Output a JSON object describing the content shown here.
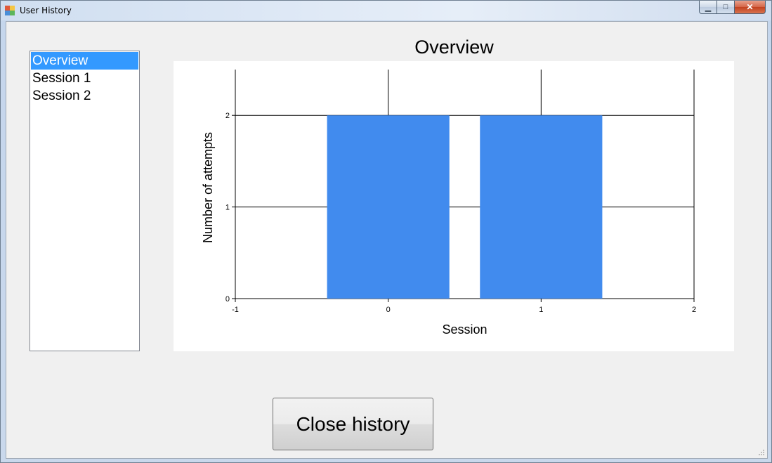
{
  "window": {
    "title": "User History",
    "minimize_glyph": "▁",
    "maximize_glyph": "□",
    "close_glyph": "✕",
    "icon": "app-icon"
  },
  "sidebar": {
    "items": [
      {
        "label": "Overview",
        "selected": true
      },
      {
        "label": "Session 1",
        "selected": false
      },
      {
        "label": "Session 2",
        "selected": false
      }
    ]
  },
  "chart": {
    "title": "Overview"
  },
  "chart_data": {
    "type": "bar",
    "title": "Overview",
    "xlabel": "Session",
    "ylabel": "Number of attempts",
    "x": [
      0,
      1
    ],
    "values": [
      2,
      2
    ],
    "xlim": [
      -1,
      2
    ],
    "ylim": [
      0,
      2.5
    ],
    "xticks": [
      -1,
      0,
      1,
      2
    ],
    "yticks": [
      0,
      1,
      2
    ],
    "grid": true,
    "bar_color": "#418bee"
  },
  "actions": {
    "close_label": "Close history"
  }
}
